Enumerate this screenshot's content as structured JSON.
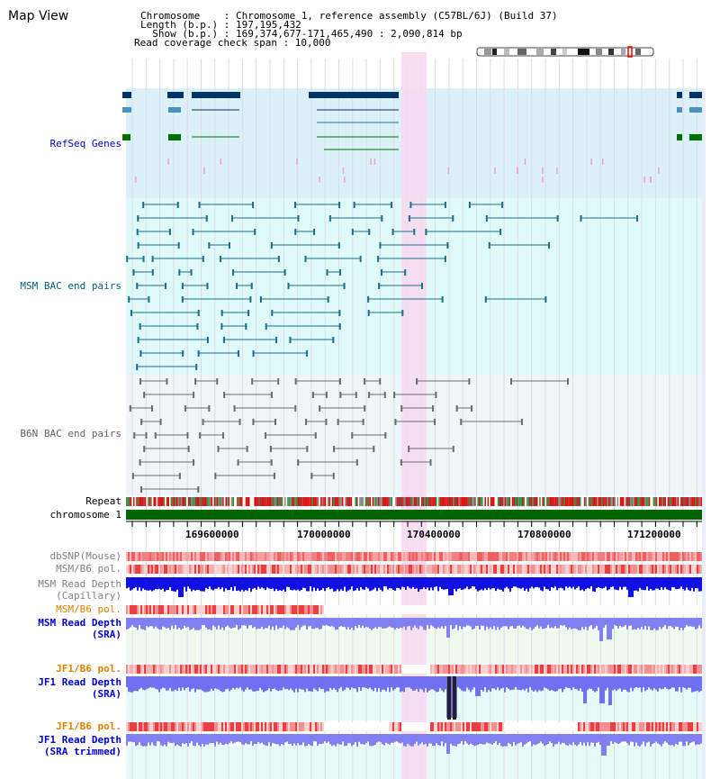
{
  "header": {
    "title": "Map View",
    "chromosome_line": "Chromosome    : Chromosome 1, reference assembly (C57BL/6J) (Build 37)",
    "length_line": "Length (b.p.) : 197,195,432",
    "show_line": "  Show (b.p.) : 169,374,677-171,465,490 : 2,090,814 bp",
    "coverage_line": "Read coverage check span : 10,000"
  },
  "tracks": {
    "refseq": "RefSeq Genes",
    "msm_bac": "MSM BAC end pairs",
    "b6n_bac": "B6N BAC end pairs",
    "repeat": "Repeat",
    "chromosome": "chromosome 1",
    "dbsnp": "dbSNP(Mouse)",
    "msm_b6_pol": "MSM/B6 pol.",
    "msm_depth_cap_1": "MSM Read Depth",
    "msm_depth_cap_2": "(Capillary)",
    "msm_b6_pol_2": "MSM/B6 pol.",
    "msm_depth_sra_1": "MSM Read Depth",
    "msm_depth_sra_2": "(SRA)",
    "jf1_b6_pol": "JF1/B6 pol.",
    "jf1_depth_sra_1": "JF1 Read Depth",
    "jf1_depth_sra_2": "(SRA)",
    "jf1_b6_pol_2": "JF1/B6 pol.",
    "jf1_depth_trim_1": "JF1 Read Depth",
    "jf1_depth_trim_2": "(SRA trimmed)"
  },
  "ruler": {
    "ticks": [
      "169600000",
      "170000000",
      "170400000",
      "170800000",
      "171200000"
    ]
  },
  "colors": {
    "refseq_bg": "#dcf0fa",
    "msm_bg": "#e0fafa",
    "b6n_bg": "#f0f5fa",
    "highlight": "#f8d8f0",
    "refseq_label": "#0000cc",
    "msm_label": "#006080",
    "b6n_label": "#606070",
    "depth_label": "#0000cc",
    "pol_msm": "#808080",
    "pol_orange": "#e08000",
    "chromosome_bar": "#006400"
  }
}
